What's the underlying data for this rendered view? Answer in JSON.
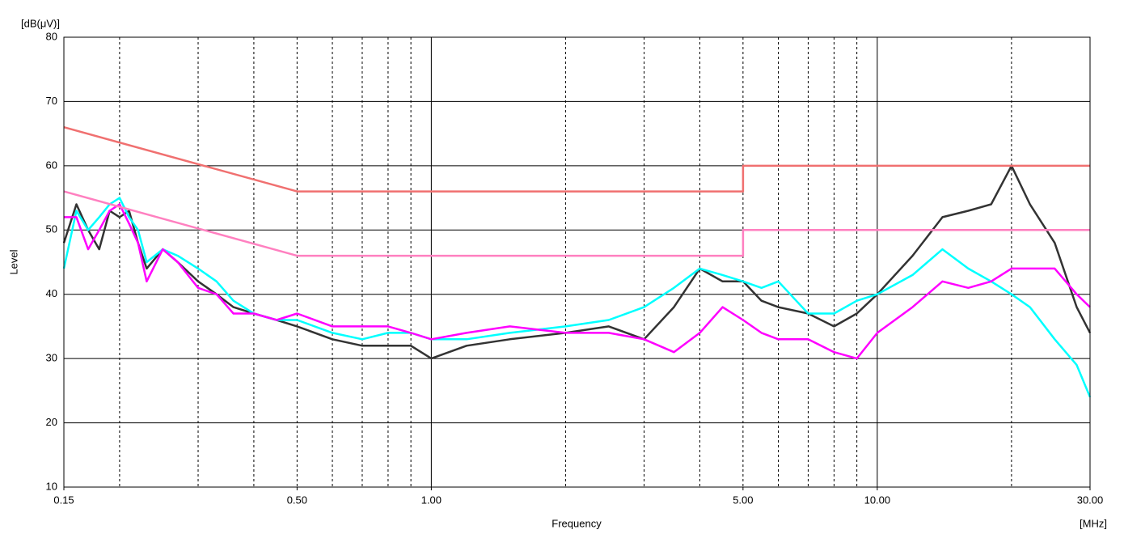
{
  "chart_data": {
    "type": "line",
    "x_scale": "log",
    "y_unit_label": "[dB(μV)]",
    "ylabel": "Level",
    "xlabel": "Frequency",
    "x_unit_label": "[MHz]",
    "xlim": [
      0.15,
      30
    ],
    "ylim": [
      10,
      80
    ],
    "xticks": [
      {
        "value": 0.15,
        "label": "0.15"
      },
      {
        "value": 0.5,
        "label": "0.50"
      },
      {
        "value": 1,
        "label": "1.00"
      },
      {
        "value": 5,
        "label": "5.00"
      },
      {
        "value": 10,
        "label": "10.00"
      },
      {
        "value": 30,
        "label": "30.00"
      }
    ],
    "yticks": [
      10,
      20,
      30,
      40,
      50,
      60,
      70,
      80
    ],
    "x_grid_major": [
      1,
      10
    ],
    "x_grid_minor": [
      0.2,
      0.3,
      0.4,
      0.5,
      0.6,
      0.7,
      0.8,
      0.9,
      2,
      3,
      4,
      5,
      6,
      7,
      8,
      9,
      20
    ],
    "grid": true,
    "series": [
      {
        "color": "#333333",
        "x": [
          0.15,
          0.16,
          0.17,
          0.18,
          0.19,
          0.2,
          0.21,
          0.22,
          0.23,
          0.25,
          0.27,
          0.3,
          0.33,
          0.36,
          0.4,
          0.45,
          0.5,
          0.6,
          0.7,
          0.8,
          0.9,
          1.0,
          1.2,
          1.5,
          2,
          2.5,
          3,
          3.5,
          4,
          4.5,
          5,
          5.5,
          6,
          7,
          8,
          9,
          10,
          12,
          14,
          16,
          18,
          20,
          22,
          25,
          28,
          30
        ],
        "values": [
          48,
          54,
          50,
          47,
          53,
          52,
          53,
          48,
          44,
          47,
          45,
          42,
          40,
          38,
          37,
          36,
          35,
          33,
          32,
          32,
          32,
          30,
          32,
          33,
          34,
          35,
          33,
          38,
          44,
          42,
          42,
          39,
          38,
          37,
          35,
          37,
          40,
          46,
          52,
          53,
          54,
          60,
          54,
          48,
          38,
          34
        ]
      },
      {
        "color": "#00ffff",
        "x": [
          0.15,
          0.16,
          0.17,
          0.18,
          0.19,
          0.2,
          0.21,
          0.22,
          0.23,
          0.25,
          0.27,
          0.3,
          0.33,
          0.36,
          0.4,
          0.45,
          0.5,
          0.6,
          0.7,
          0.8,
          0.9,
          1.0,
          1.2,
          1.5,
          2,
          2.5,
          3,
          3.5,
          4,
          4.5,
          5,
          5.5,
          6,
          7,
          8,
          9,
          10,
          12,
          14,
          16,
          18,
          20,
          22,
          25,
          28,
          30
        ],
        "values": [
          44,
          53,
          50,
          52,
          54,
          55,
          52,
          50,
          45,
          47,
          46,
          44,
          42,
          39,
          37,
          36,
          36,
          34,
          33,
          34,
          34,
          33,
          33,
          34,
          35,
          36,
          38,
          41,
          44,
          43,
          42,
          41,
          42,
          37,
          37,
          39,
          40,
          43,
          47,
          44,
          42,
          40,
          38,
          33,
          29,
          24
        ]
      },
      {
        "color": "#ff00ff",
        "x": [
          0.15,
          0.16,
          0.17,
          0.18,
          0.19,
          0.2,
          0.21,
          0.22,
          0.23,
          0.25,
          0.27,
          0.3,
          0.33,
          0.36,
          0.4,
          0.45,
          0.5,
          0.6,
          0.7,
          0.8,
          0.9,
          1.0,
          1.2,
          1.5,
          2,
          2.5,
          3,
          3.5,
          4,
          4.5,
          5,
          5.5,
          6,
          7,
          8,
          9,
          10,
          12,
          14,
          16,
          18,
          20,
          22,
          25,
          28,
          30
        ],
        "values": [
          52,
          52,
          47,
          50,
          53,
          54,
          51,
          48,
          42,
          47,
          45,
          41,
          40,
          37,
          37,
          36,
          37,
          35,
          35,
          35,
          34,
          33,
          34,
          35,
          34,
          34,
          33,
          31,
          34,
          38,
          36,
          34,
          33,
          33,
          31,
          30,
          34,
          38,
          42,
          41,
          42,
          44,
          44,
          44,
          40,
          38
        ]
      },
      {
        "color": "#f07070",
        "x": [
          0.15,
          0.5,
          5,
          5,
          30
        ],
        "values": [
          66,
          56,
          56,
          60,
          60
        ]
      },
      {
        "color": "#ff80c0",
        "x": [
          0.15,
          0.5,
          5,
          5,
          30
        ],
        "values": [
          56,
          46,
          46,
          50,
          50
        ]
      }
    ]
  }
}
